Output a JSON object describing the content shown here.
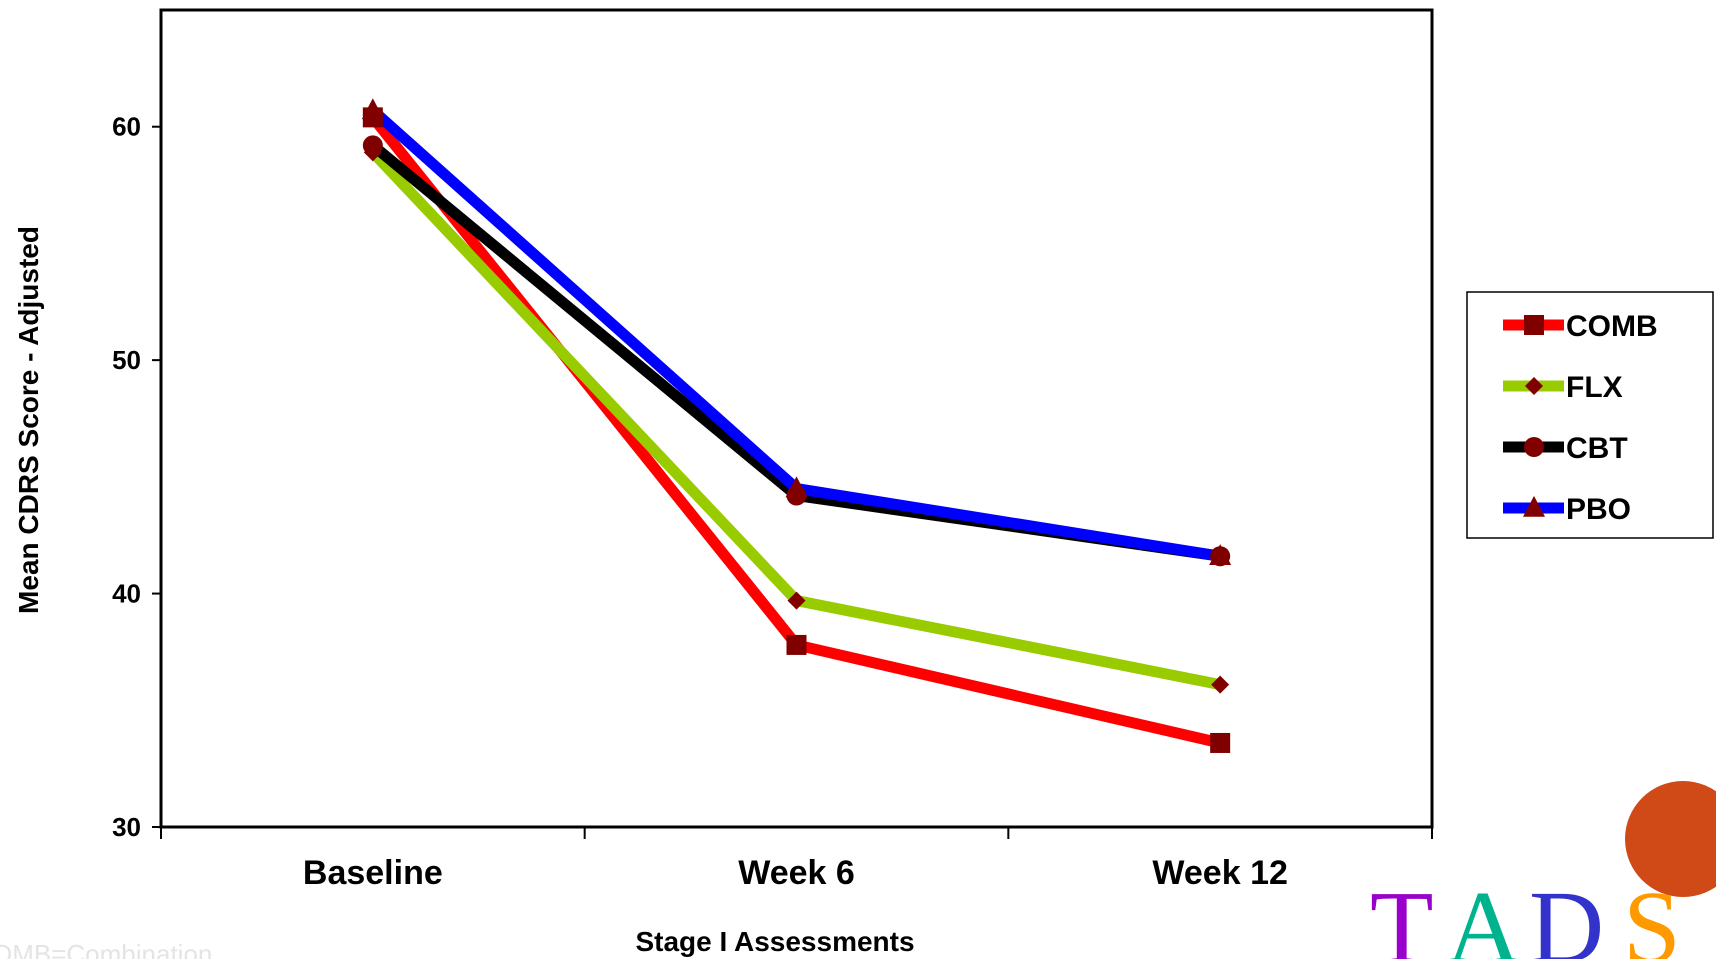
{
  "chart_data": {
    "type": "line",
    "categories": [
      "Baseline",
      "Week 6",
      "Week 12"
    ],
    "ylabel": "Mean CDRS Score - Adjusted",
    "xlabel": "Stage I Assessments",
    "ylim": [
      30,
      65
    ],
    "yticks": [
      30,
      40,
      50,
      60
    ],
    "grid": false,
    "legend_position": "right",
    "series": [
      {
        "name": "COMB",
        "color": "#ff0000",
        "marker": "square",
        "values": [
          60.4,
          37.8,
          33.6
        ]
      },
      {
        "name": "FLX",
        "color": "#99cc00",
        "marker": "diamond",
        "values": [
          58.9,
          39.7,
          36.1
        ]
      },
      {
        "name": "CBT",
        "color": "#000000",
        "marker": "circle",
        "values": [
          59.2,
          44.2,
          41.6
        ]
      },
      {
        "name": "PBO",
        "color": "#0000ff",
        "marker": "triangle",
        "values": [
          60.7,
          44.5,
          41.6
        ]
      }
    ],
    "marker_color": "#800000"
  },
  "footnote": "OMB=Combination",
  "logo": {
    "letters": [
      "T",
      "A",
      "D",
      "S"
    ],
    "colors": [
      "#9900cc",
      "#00b38f",
      "#3333cc",
      "#ff9900"
    ],
    "circle_color": "#d04a18"
  }
}
